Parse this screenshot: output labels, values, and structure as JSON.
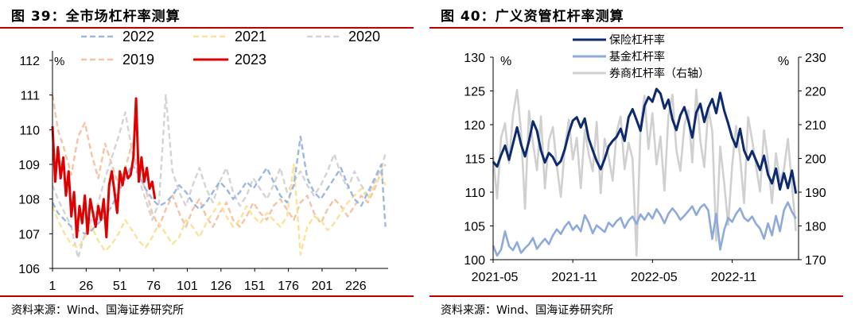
{
  "left": {
    "title": "图 39：全市场杠杆率测算",
    "source": "资料来源：Wind、国海证券研究所",
    "chart_data": {
      "type": "line",
      "title": "",
      "xlabel": "",
      "ylabel": "%",
      "ylim": [
        106,
        112
      ],
      "yticks": [
        106,
        107,
        108,
        109,
        110,
        111,
        112
      ],
      "xlim": [
        1,
        250
      ],
      "xticks": [
        1,
        26,
        51,
        76,
        101,
        126,
        151,
        176,
        201,
        226
      ],
      "grid": false,
      "legend_position": "top",
      "series": [
        {
          "name": "2022",
          "color": "#9bb8e3",
          "style": "dashed",
          "x": [
            1,
            5,
            10,
            15,
            20,
            25,
            30,
            35,
            40,
            45,
            50,
            55,
            60,
            65,
            70,
            75,
            80,
            85,
            90,
            95,
            100,
            105,
            110,
            115,
            120,
            125,
            130,
            135,
            140,
            145,
            150,
            155,
            160,
            165,
            170,
            175,
            180,
            185,
            190,
            195,
            200,
            205,
            210,
            215,
            220,
            225,
            230,
            235,
            240,
            245,
            248
          ],
          "values": [
            107.9,
            107.6,
            107.4,
            107.2,
            107.1,
            107.0,
            107.1,
            107.3,
            107.5,
            107.8,
            108.2,
            108.6,
            109.0,
            108.7,
            108.3,
            108.0,
            107.8,
            107.9,
            108.1,
            108.4,
            108.2,
            107.9,
            107.7,
            107.9,
            108.2,
            108.5,
            108.3,
            108.0,
            108.2,
            108.5,
            108.3,
            108.6,
            108.9,
            108.5,
            108.1,
            107.9,
            108.4,
            109.8,
            108.6,
            108.2,
            108.0,
            108.3,
            108.6,
            108.9,
            108.4,
            108.0,
            107.8,
            108.2,
            108.6,
            109.0,
            107.2
          ]
        },
        {
          "name": "2021",
          "color": "#fbe29a",
          "style": "dashed",
          "x": [
            1,
            5,
            10,
            15,
            20,
            25,
            30,
            35,
            40,
            45,
            50,
            55,
            60,
            65,
            70,
            75,
            80,
            85,
            90,
            95,
            100,
            105,
            110,
            115,
            120,
            125,
            130,
            135,
            140,
            145,
            150,
            155,
            160,
            165,
            170,
            175,
            180,
            185,
            190,
            195,
            200,
            205,
            210,
            215,
            220,
            225,
            230,
            235,
            240,
            245,
            248
          ],
          "values": [
            107.8,
            107.4,
            107.0,
            106.7,
            106.6,
            106.9,
            107.2,
            106.8,
            106.5,
            106.7,
            107.0,
            107.4,
            107.1,
            106.8,
            106.6,
            106.9,
            107.3,
            107.0,
            106.7,
            106.9,
            107.4,
            107.2,
            106.9,
            107.3,
            107.6,
            107.9,
            107.5,
            107.2,
            107.4,
            107.8,
            107.5,
            107.3,
            107.6,
            107.4,
            107.2,
            107.5,
            109.0,
            106.4,
            107.2,
            107.5,
            107.4,
            107.1,
            107.3,
            107.6,
            107.9,
            108.1,
            108.3,
            108.0,
            108.4,
            108.7,
            108.4
          ]
        },
        {
          "name": "2020",
          "color": "#d4d4d4",
          "style": "dashed",
          "x": [
            1,
            5,
            10,
            15,
            20,
            25,
            30,
            35,
            40,
            45,
            50,
            55,
            60,
            65,
            70,
            75,
            80,
            85,
            90,
            95,
            100,
            105,
            110,
            115,
            120,
            125,
            130,
            135,
            140,
            145,
            150,
            155,
            160,
            165,
            170,
            175,
            180,
            185,
            190,
            195,
            200,
            205,
            210,
            215,
            220,
            225,
            230,
            235,
            240,
            245,
            248
          ],
          "values": [
            108.4,
            108.0,
            107.6,
            107.2,
            106.3,
            107.0,
            107.4,
            107.9,
            108.6,
            109.2,
            109.8,
            110.5,
            109.4,
            108.6,
            108.0,
            107.4,
            107.9,
            111.0,
            108.8,
            108.2,
            107.8,
            108.4,
            108.9,
            108.3,
            107.9,
            108.5,
            108.9,
            108.2,
            107.8,
            108.1,
            108.6,
            108.3,
            108.0,
            108.4,
            108.9,
            108.2,
            108.5,
            108.8,
            108.4,
            108.1,
            108.4,
            108.8,
            109.3,
            108.7,
            108.3,
            108.8,
            108.4,
            108.1,
            108.5,
            108.9,
            109.3
          ]
        },
        {
          "name": "2019",
          "color": "#f6c3a4",
          "style": "dashed",
          "x": [
            1,
            5,
            10,
            15,
            20,
            25,
            30,
            35,
            40,
            45,
            50,
            55,
            60,
            65,
            70,
            75,
            80,
            85,
            90,
            95,
            100,
            105,
            110,
            115,
            120,
            125,
            130,
            135,
            140,
            145,
            150,
            155,
            160,
            165,
            170,
            175,
            180,
            185,
            190,
            195,
            200,
            205,
            210,
            215,
            220,
            225,
            230,
            235,
            240,
            245,
            248
          ],
          "values": [
            111.0,
            110.0,
            109.4,
            108.7,
            109.8,
            110.2,
            109.3,
            108.6,
            109.6,
            109.0,
            108.4,
            108.9,
            109.6,
            108.7,
            108.3,
            107.6,
            107.2,
            107.7,
            108.1,
            107.6,
            107.2,
            107.7,
            108.0,
            107.5,
            107.2,
            107.6,
            107.9,
            107.4,
            107.2,
            107.5,
            107.9,
            107.6,
            107.4,
            107.8,
            108.0,
            107.7,
            107.4,
            107.9,
            108.1,
            107.6,
            107.3,
            107.7,
            108.0,
            107.8,
            107.5,
            107.8,
            108.1,
            107.9,
            108.3,
            108.8,
            109.0
          ]
        },
        {
          "name": "2023",
          "color": "#e00000",
          "style": "solid",
          "x": [
            1,
            3,
            5,
            7,
            9,
            11,
            13,
            15,
            17,
            19,
            21,
            23,
            25,
            27,
            29,
            31,
            33,
            35,
            37,
            39,
            41,
            43,
            45,
            47,
            49,
            51,
            53,
            55,
            57,
            59,
            61,
            63,
            65,
            67,
            69,
            71,
            73,
            75,
            77
          ],
          "values": [
            110.1,
            108.5,
            109.5,
            108.6,
            109.2,
            108.1,
            108.8,
            107.5,
            108.2,
            106.9,
            107.8,
            107.3,
            108.1,
            107.0,
            108.0,
            107.6,
            107.2,
            107.8,
            107.4,
            108.0,
            106.9,
            108.4,
            108.8,
            108.2,
            107.6,
            108.8,
            108.4,
            108.9,
            108.6,
            108.7,
            109.2,
            110.9,
            108.5,
            109.2,
            108.5,
            108.9,
            108.3,
            108.5,
            108.0
          ]
        }
      ]
    }
  },
  "right": {
    "title": "图 40：广义资管杠杆率测算",
    "source": "资料来源：Wind、国海证券研究所",
    "chart_data": {
      "type": "line",
      "title": "",
      "xlabel": "",
      "ylabel": "%",
      "y2label": "%",
      "ylim": [
        100,
        130
      ],
      "y2lim": [
        170,
        230
      ],
      "yticks": [
        100,
        105,
        110,
        115,
        120,
        125,
        130
      ],
      "y2ticks": [
        170,
        180,
        190,
        200,
        210,
        220,
        230
      ],
      "xlim": [
        0,
        23
      ],
      "xtick_positions": [
        0,
        6,
        12,
        18
      ],
      "xtick_labels": [
        "2021-05",
        "2021-11",
        "2022-05",
        "2022-11"
      ],
      "grid": false,
      "legend_position": "top-left",
      "series": [
        {
          "name": "保险杠杆率",
          "color": "#0d2a6e",
          "axis": "left",
          "x": [
            0,
            0.3,
            0.6,
            0.9,
            1.2,
            1.5,
            1.8,
            2.1,
            2.4,
            2.7,
            3.0,
            3.3,
            3.6,
            3.9,
            4.2,
            4.5,
            4.8,
            5.1,
            5.4,
            5.7,
            6.0,
            6.3,
            6.6,
            6.9,
            7.2,
            7.5,
            7.8,
            8.1,
            8.4,
            8.7,
            9.0,
            9.3,
            9.6,
            9.9,
            10.2,
            10.5,
            10.8,
            11.1,
            11.4,
            11.7,
            12.0,
            12.3,
            12.6,
            12.9,
            13.2,
            13.5,
            13.8,
            14.1,
            14.4,
            14.7,
            15.0,
            15.3,
            15.6,
            15.9,
            16.2,
            16.5,
            16.8,
            17.1,
            17.4,
            17.7,
            18.0,
            18.3,
            18.6,
            18.9,
            19.2,
            19.5,
            19.8,
            20.1,
            20.4,
            20.7,
            21.0,
            21.3,
            21.6,
            21.9,
            22.2,
            22.5,
            22.8
          ],
          "values": [
            114.5,
            113.8,
            115.5,
            116.9,
            114.8,
            117.2,
            119.6,
            117.1,
            115.3,
            117.6,
            120.5,
            119.1,
            116.2,
            114.4,
            115.8,
            115.2,
            114.0,
            114.6,
            116.4,
            118.8,
            120.6,
            121.1,
            119.6,
            120.9,
            117.9,
            116.2,
            114.6,
            113.4,
            114.9,
            116.8,
            117.6,
            118.2,
            119.4,
            117.6,
            121.1,
            122.3,
            120.7,
            119.1,
            122.8,
            124.1,
            123.4,
            125.3,
            124.6,
            122.4,
            123.7,
            120.8,
            119.2,
            121.4,
            122.6,
            120.6,
            118.1,
            121.8,
            123.1,
            120.4,
            122.5,
            123.8,
            121.7,
            124.7,
            122.1,
            120.2,
            118.1,
            116.7,
            119.4,
            116.2,
            114.8,
            116.1,
            114.7,
            113.3,
            115.4,
            112.6,
            111.3,
            113.5,
            110.4,
            112.8,
            110.6,
            113.2,
            109.8
          ]
        },
        {
          "name": "基金杠杆率",
          "color": "#8eaadb",
          "axis": "left",
          "x": [
            0,
            0.3,
            0.6,
            0.9,
            1.2,
            1.5,
            1.8,
            2.1,
            2.4,
            2.7,
            3.0,
            3.3,
            3.6,
            3.9,
            4.2,
            4.5,
            4.8,
            5.1,
            5.4,
            5.7,
            6.0,
            6.3,
            6.6,
            6.9,
            7.2,
            7.5,
            7.8,
            8.1,
            8.4,
            8.7,
            9.0,
            9.3,
            9.6,
            9.9,
            10.2,
            10.5,
            10.8,
            11.1,
            11.4,
            11.7,
            12.0,
            12.3,
            12.6,
            12.9,
            13.2,
            13.5,
            13.8,
            14.1,
            14.4,
            14.7,
            15.0,
            15.3,
            15.6,
            15.9,
            16.2,
            16.5,
            16.8,
            17.1,
            17.4,
            17.7,
            18.0,
            18.3,
            18.6,
            18.9,
            19.2,
            19.5,
            19.8,
            20.1,
            20.4,
            20.7,
            21.0,
            21.3,
            21.6,
            21.9,
            22.2,
            22.5,
            22.8
          ],
          "values": [
            102.1,
            100.6,
            101.5,
            104.2,
            102.0,
            101.4,
            102.6,
            101.0,
            101.7,
            102.3,
            103.2,
            101.6,
            102.4,
            103.1,
            102.3,
            103.6,
            104.5,
            103.8,
            104.9,
            105.6,
            104.4,
            105.1,
            104.2,
            106.6,
            105.5,
            103.9,
            105.1,
            104.6,
            104.1,
            105.5,
            104.9,
            105.7,
            106.2,
            104.7,
            105.8,
            106.4,
            105.3,
            106.7,
            105.9,
            106.9,
            106.1,
            107.5,
            106.6,
            105.4,
            106.8,
            107.6,
            106.9,
            105.9,
            106.5,
            107.2,
            107.9,
            106.6,
            107.7,
            108.2,
            107.3,
            103.1,
            106.8,
            101.5,
            104.4,
            106.2,
            105.6,
            106.8,
            107.6,
            106.2,
            105.7,
            106.4,
            105.3,
            104.6,
            103.1,
            105.4,
            103.6,
            106.5,
            104.2,
            107.3,
            108.5,
            107.1,
            106.1
          ]
        },
        {
          "name": "券商杠杆率（右轴）",
          "color": "#d0d0d0",
          "axis": "right",
          "x": [
            0,
            0.3,
            0.6,
            0.9,
            1.2,
            1.5,
            1.8,
            2.1,
            2.4,
            2.7,
            3.0,
            3.3,
            3.6,
            3.9,
            4.2,
            4.5,
            4.8,
            5.1,
            5.4,
            5.7,
            6.0,
            6.3,
            6.6,
            6.9,
            7.2,
            7.5,
            7.8,
            8.1,
            8.4,
            8.7,
            9.0,
            9.3,
            9.6,
            9.9,
            10.2,
            10.5,
            10.8,
            11.1,
            11.4,
            11.7,
            12.0,
            12.3,
            12.6,
            12.9,
            13.2,
            13.5,
            13.8,
            14.1,
            14.4,
            14.7,
            15.0,
            15.3,
            15.6,
            15.9,
            16.2,
            16.5,
            16.8,
            17.1,
            17.4,
            17.7,
            18.0,
            18.3,
            18.6,
            18.9,
            19.2,
            19.5,
            19.8,
            20.1,
            20.4,
            20.7,
            21.0,
            21.3,
            21.6,
            21.9,
            22.2,
            22.5,
            22.8
          ],
          "values": [
            200.5,
            188.1,
            206.2,
            210.4,
            198.7,
            212.8,
            220.3,
            207.9,
            185.1,
            214.1,
            204.6,
            196.5,
            212.5,
            191.1,
            205.2,
            209.3,
            197.8,
            188.6,
            203.3,
            211.5,
            199.7,
            206.1,
            191.2,
            208.4,
            201.3,
            196.2,
            210.8,
            189.7,
            205.8,
            200.3,
            193.4,
            207.9,
            212.4,
            196.8,
            204.6,
            199.9,
            171.2,
            209.2,
            218.6,
            202.8,
            213.4,
            198.2,
            206.5,
            190.5,
            212.6,
            218.9,
            202.4,
            196.3,
            209.7,
            214.3,
            198.8,
            220.4,
            205.2,
            197.4,
            214.8,
            208.1,
            175.6,
            203.5,
            192.7,
            180.3,
            197.8,
            209.6,
            200.4,
            186.7,
            212.2,
            205.6,
            197.6,
            190.2,
            208.3,
            199.2,
            186.8,
            201.5,
            193.4,
            196.7,
            205.8,
            192.1,
            178.5
          ]
        }
      ]
    }
  }
}
